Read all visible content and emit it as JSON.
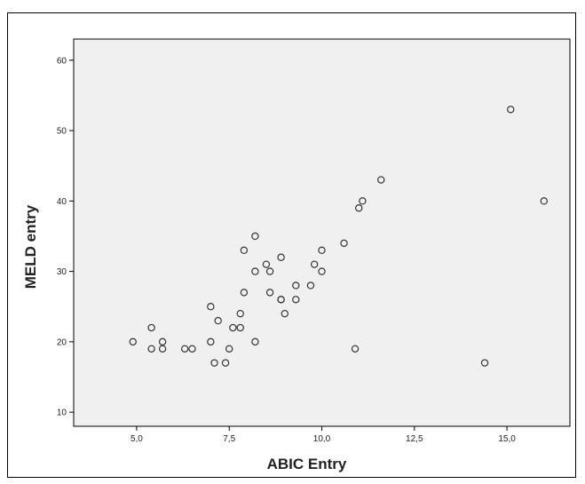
{
  "chart_data": {
    "type": "scatter",
    "xlabel": "ABIC Entry",
    "ylabel": "MELD entry",
    "xlim": [
      3.3,
      16.7
    ],
    "ylim": [
      8,
      63
    ],
    "x_ticks": [
      5.0,
      7.5,
      10.0,
      12.5,
      15.0
    ],
    "x_tick_labels": [
      "5,0",
      "7,5",
      "10,0",
      "12,5",
      "15,0"
    ],
    "y_ticks": [
      10,
      20,
      30,
      40,
      50,
      60
    ],
    "y_tick_labels": [
      "10",
      "20",
      "30",
      "40",
      "50",
      "60"
    ],
    "grid": false,
    "colors": {
      "plot_background": "#f0f0f0",
      "marker_stroke": "#333333"
    },
    "points": [
      {
        "x": 4.9,
        "y": 20
      },
      {
        "x": 5.4,
        "y": 22
      },
      {
        "x": 5.4,
        "y": 19
      },
      {
        "x": 5.7,
        "y": 20
      },
      {
        "x": 5.7,
        "y": 19
      },
      {
        "x": 6.3,
        "y": 19
      },
      {
        "x": 6.5,
        "y": 19
      },
      {
        "x": 7.0,
        "y": 25
      },
      {
        "x": 7.0,
        "y": 20
      },
      {
        "x": 7.1,
        "y": 17
      },
      {
        "x": 7.2,
        "y": 23
      },
      {
        "x": 7.4,
        "y": 17
      },
      {
        "x": 7.5,
        "y": 19
      },
      {
        "x": 7.6,
        "y": 22
      },
      {
        "x": 7.8,
        "y": 22
      },
      {
        "x": 7.8,
        "y": 24
      },
      {
        "x": 7.9,
        "y": 33
      },
      {
        "x": 7.9,
        "y": 27
      },
      {
        "x": 8.2,
        "y": 35
      },
      {
        "x": 8.2,
        "y": 30
      },
      {
        "x": 8.2,
        "y": 20
      },
      {
        "x": 8.5,
        "y": 31
      },
      {
        "x": 8.6,
        "y": 30
      },
      {
        "x": 8.6,
        "y": 27
      },
      {
        "x": 8.9,
        "y": 32
      },
      {
        "x": 8.9,
        "y": 26
      },
      {
        "x": 8.9,
        "y": 26
      },
      {
        "x": 9.0,
        "y": 24
      },
      {
        "x": 9.3,
        "y": 28
      },
      {
        "x": 9.3,
        "y": 26
      },
      {
        "x": 9.7,
        "y": 28
      },
      {
        "x": 9.8,
        "y": 31
      },
      {
        "x": 10.0,
        "y": 33
      },
      {
        "x": 10.0,
        "y": 30
      },
      {
        "x": 10.6,
        "y": 34
      },
      {
        "x": 10.9,
        "y": 19
      },
      {
        "x": 11.0,
        "y": 39
      },
      {
        "x": 11.1,
        "y": 40
      },
      {
        "x": 11.6,
        "y": 43
      },
      {
        "x": 14.4,
        "y": 17
      },
      {
        "x": 15.1,
        "y": 53
      },
      {
        "x": 16.0,
        "y": 40
      }
    ]
  }
}
